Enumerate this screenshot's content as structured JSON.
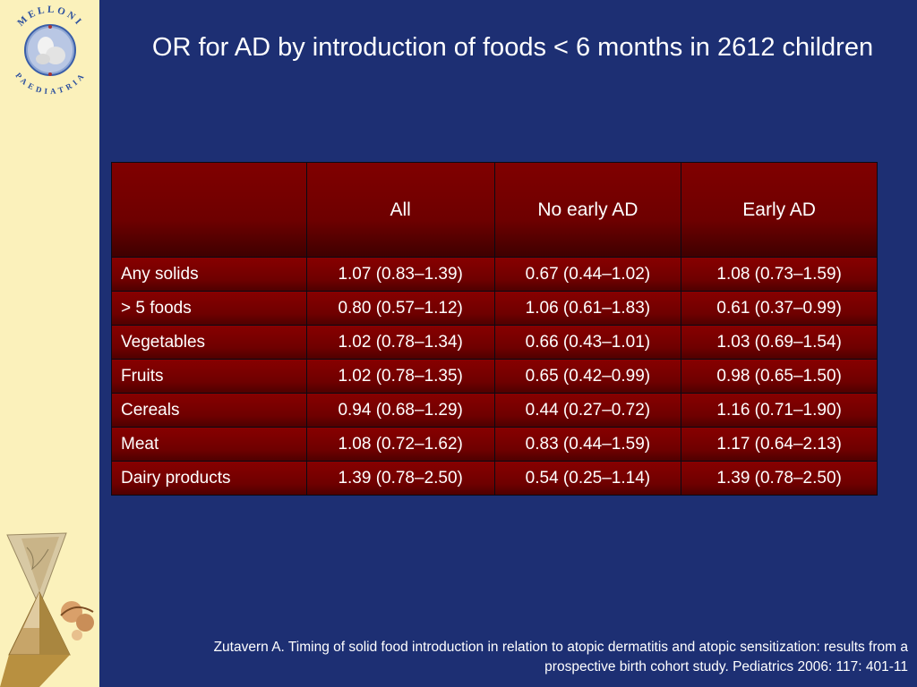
{
  "logo": {
    "top_text": "MELLONI",
    "bottom_text": "PAEDIATRIA"
  },
  "slide": {
    "title": "OR for AD by introduction of foods < 6 months in 2612 children",
    "citation": "Zutavern A. Timing of solid food introduction in relation to atopic dermatitis and atopic sensitization: results from a prospective birth cohort study. Pediatrics 2006: 117: 401-11"
  },
  "table": {
    "headers": [
      "",
      "All",
      "No early AD",
      "Early AD"
    ],
    "rows": [
      [
        "Any solids",
        "1.07 (0.83–1.39)",
        "0.67 (0.44–1.02)",
        "1.08 (0.73–1.59)"
      ],
      [
        "> 5 foods",
        "0.80 (0.57–1.12)",
        "1.06 (0.61–1.83)",
        "0.61 (0.37–0.99)"
      ],
      [
        "Vegetables",
        "1.02 (0.78–1.34)",
        "0.66 (0.43–1.01)",
        "1.03 (0.69–1.54)"
      ],
      [
        "Fruits",
        "1.02 (0.78–1.35)",
        "0.65 (0.42–0.99)",
        "0.98 (0.65–1.50)"
      ],
      [
        "Cereals",
        "0.94 (0.68–1.29)",
        "0.44 (0.27–0.72)",
        "1.16 (0.71–1.90)"
      ],
      [
        "Meat",
        "1.08 (0.72–1.62)",
        "0.83 (0.44–1.59)",
        "1.17 (0.64–2.13)"
      ],
      [
        "Dairy products",
        "1.39 (0.78–2.50)",
        "0.54 (0.25–1.14)",
        "1.39 (0.78–2.50)"
      ]
    ]
  },
  "colors": {
    "background": "#1d2f73",
    "sidebar": "#fbf1bb",
    "table_fill": "#7a0000",
    "text": "#ffffff",
    "logo_text": "#2b4f9e"
  }
}
